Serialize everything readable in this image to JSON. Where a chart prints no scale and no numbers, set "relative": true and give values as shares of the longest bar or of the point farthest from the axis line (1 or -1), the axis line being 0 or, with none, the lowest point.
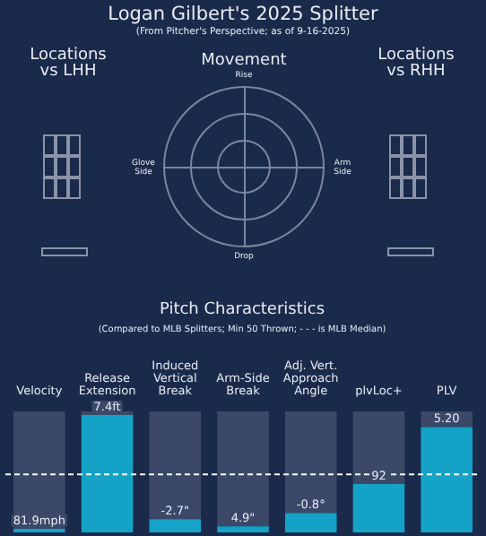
{
  "chart_data": {
    "type": "bar",
    "title": "Logan Gilbert's 2025 Splitter",
    "subtitle": "(From Pitcher's Perspective; as of 9-16-2025)",
    "annotations": [
      "Locations\nvs LHH",
      "Movement",
      "Locations\nvs RHH",
      "Glove\nSide",
      "Arm\nSide",
      "Rise",
      "Drop",
      "Pitch Characteristics",
      "(Compared to MLB Splitters; Min 50 Thrown; - - - is MLB Median)",
      {
        "text": "81.9mph",
        "x": "Velocity",
        "y": 0.03
      },
      {
        "text": "7.4ft",
        "x": "Release\nExtension",
        "y": 0.97
      },
      {
        "text": "-2.7\"",
        "x": "Induced\nVertical\nBreak",
        "y": 0.11
      },
      {
        "text": "4.9\"",
        "x": "Arm-Side\nBreak",
        "y": 0.05
      },
      {
        "text": "-0.8°",
        "x": "Adj. Vert.\nApproach\nAngle",
        "y": 0.16
      },
      {
        "text": "92",
        "x": "plvLoc+",
        "y": 0.4
      },
      {
        "text": "5.20",
        "x": "PLV",
        "y": 0.87
      }
    ],
    "categories": [
      "Velocity",
      "Release\nExtension",
      "Induced\nVertical\nBreak",
      "Arm-Side\nBreak",
      "Adj. Vert.\nApproach\nAngle",
      "plvLoc+",
      "PLV"
    ],
    "relative": true,
    "stacked": true,
    "series": [
      {
        "color": "#14a3c7",
        "values": [
          0.03,
          0.97,
          0.11,
          0.05,
          0.16,
          0.4,
          0.87
        ]
      },
      {
        "color": "#3b4868",
        "values": [
          0.97,
          0.03,
          0.89,
          0.95,
          0.84,
          0.6,
          0.13
        ]
      }
    ],
    "ref_lines": [
      {
        "axis": "y",
        "value": 0.48,
        "color": "#ffffff",
        "line_style": "dashed"
      }
    ],
    "grid": false,
    "legend": false
  }
}
